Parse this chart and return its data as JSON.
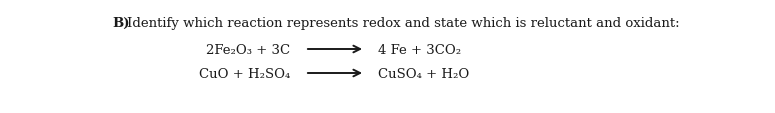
{
  "background_color": "#ffffff",
  "title_bold": "B)",
  "title_text": " Identify which reaction represents redox and state which is reluctant and oxidant:",
  "reaction1_left": "2Fe₂O₃ + 3C",
  "reaction1_right": "4 Fe + 3CO₂",
  "reaction2_left": "CuO + H₂SO₄",
  "reaction2_right": "CuSO₄ + H₂O",
  "font_size_title": 9.5,
  "font_size_reaction": 9.5,
  "text_color": "#1a1a1a",
  "fig_width": 7.75,
  "fig_height": 1.14,
  "dpi": 100
}
